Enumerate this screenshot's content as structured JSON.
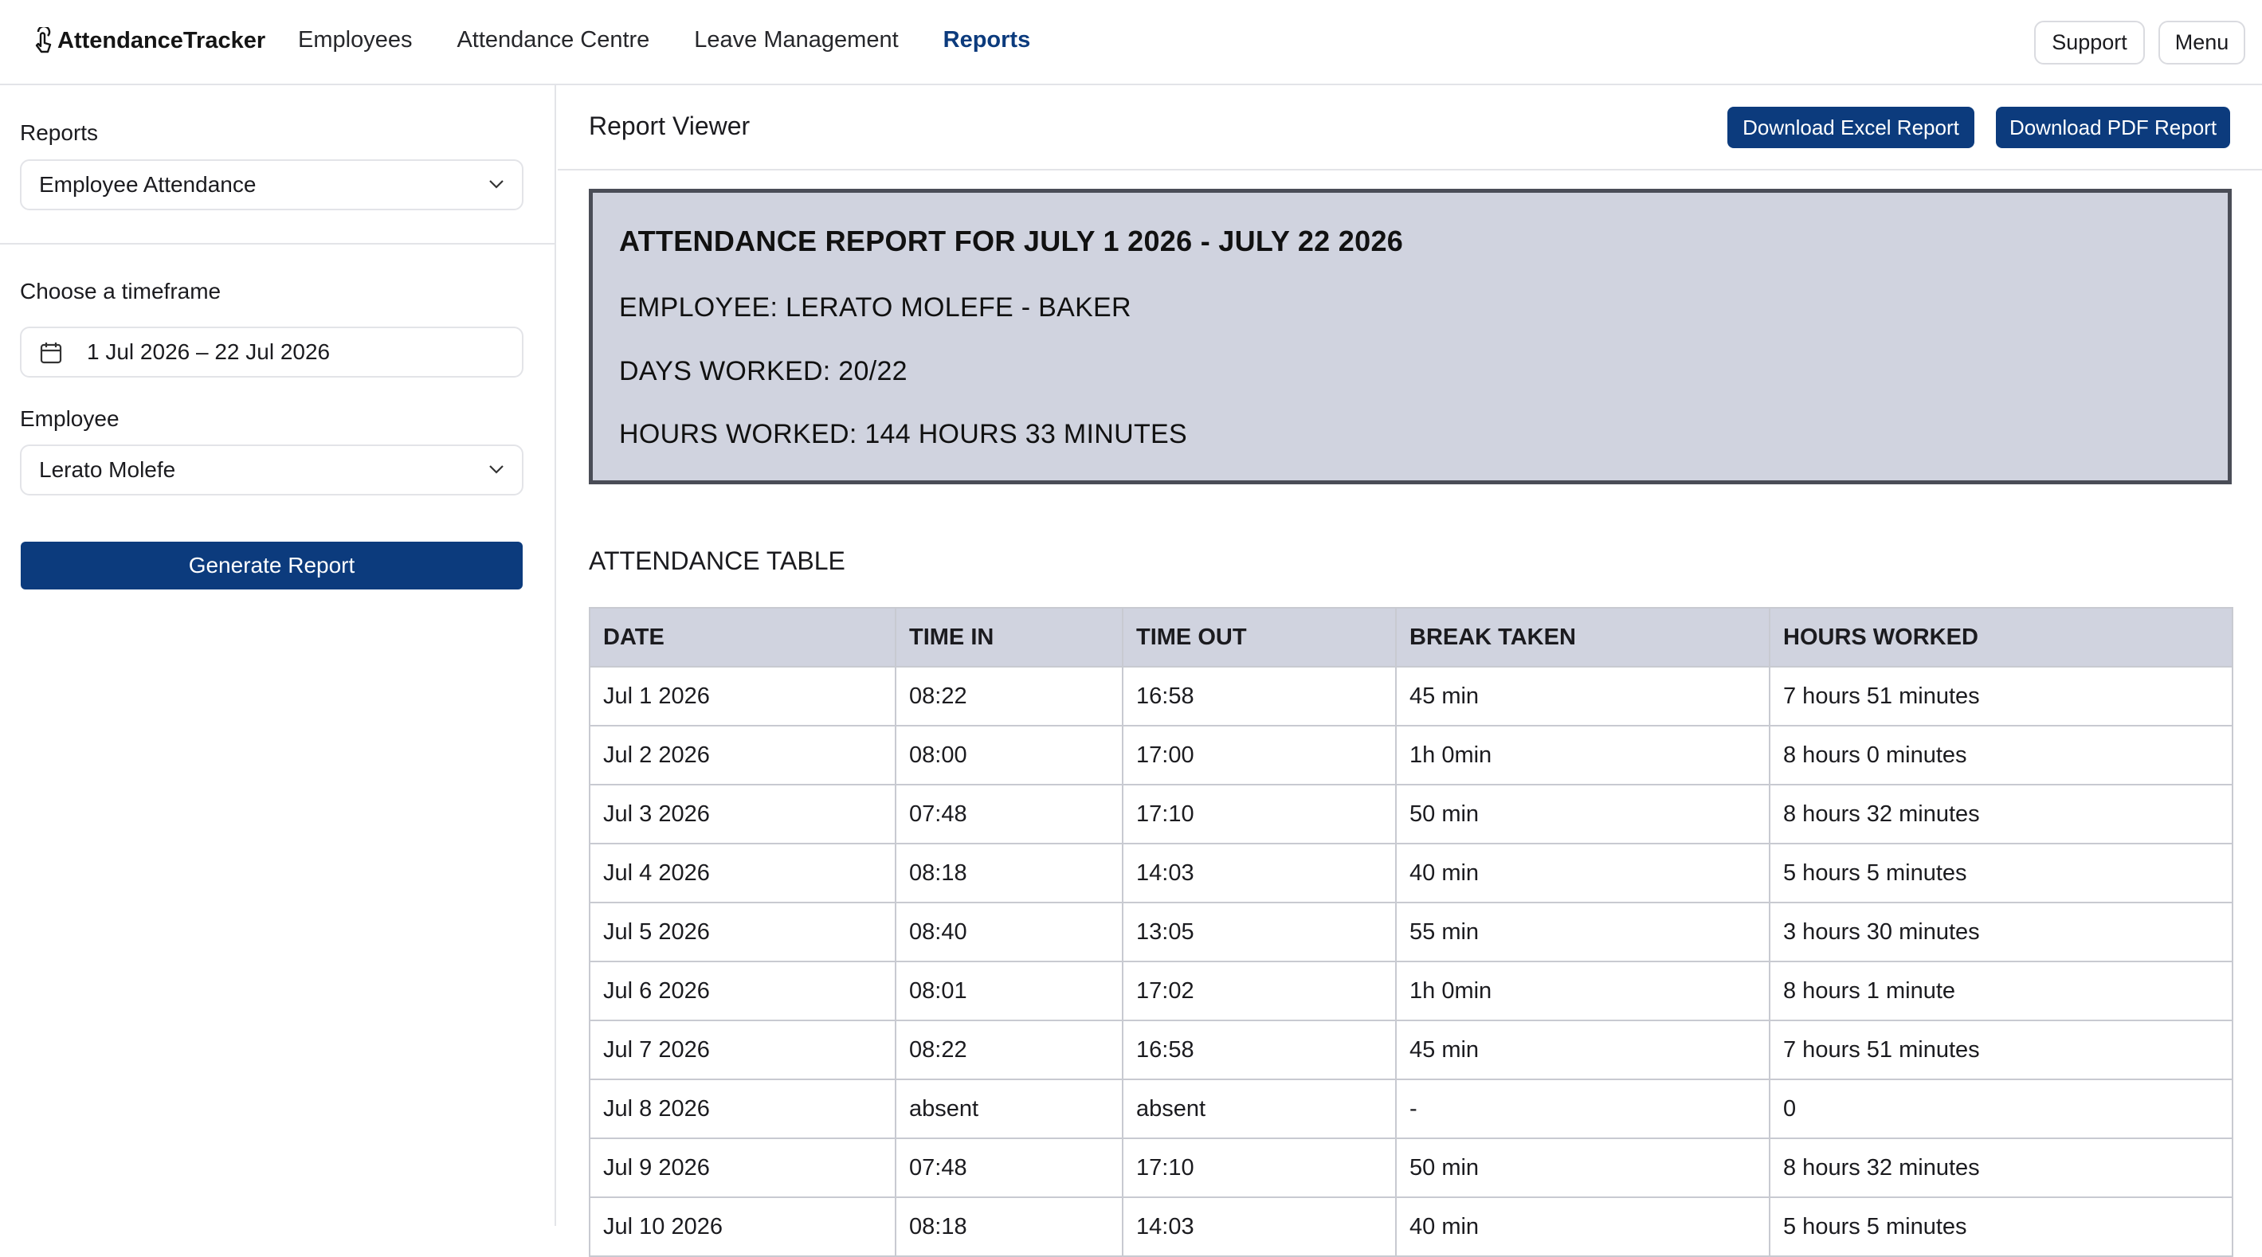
{
  "app": {
    "brand": "AttendanceTracker",
    "nav": [
      "Employees",
      "Attendance Centre",
      "Leave Management",
      "Reports"
    ],
    "active_nav": "Reports",
    "support_label": "Support",
    "menu_label": "Menu"
  },
  "sidebar": {
    "reports_label": "Reports",
    "reports_value": "Employee Attendance",
    "timeframe_label": "Choose a timeframe",
    "timeframe_value": "1 Jul 2026 – 22 Jul 2026",
    "employee_label": "Employee",
    "employee_value": "Lerato Molefe",
    "generate_label": "Generate Report"
  },
  "viewer": {
    "title": "Report Viewer",
    "excel_label": "Download Excel Report",
    "pdf_label": "Download PDF Report"
  },
  "summary": {
    "title": "ATTENDANCE REPORT FOR JULY 1 2026 - JULY 22 2026",
    "employee": "EMPLOYEE: LERATO MOLEFE - BAKER",
    "days": "DAYS WORKED: 20/22",
    "hours": "HOURS WORKED: 144 HOURS 33 MINUTES"
  },
  "table": {
    "heading": "ATTENDANCE TABLE",
    "columns": [
      "DATE",
      "TIME IN",
      "TIME OUT",
      "BREAK TAKEN",
      "HOURS WORKED"
    ],
    "rows": [
      [
        "Jul 1 2026",
        "08:22",
        "16:58",
        "45 min",
        "7 hours 51 minutes"
      ],
      [
        "Jul 2 2026",
        "08:00",
        "17:00",
        "1h 0min",
        "8 hours 0 minutes"
      ],
      [
        "Jul 3 2026",
        "07:48",
        "17:10",
        "50 min",
        "8 hours 32 minutes"
      ],
      [
        "Jul 4 2026",
        "08:18",
        "14:03",
        "40 min",
        "5 hours 5 minutes"
      ],
      [
        "Jul 5 2026",
        "08:40",
        "13:05",
        "55 min",
        "3 hours 30 minutes"
      ],
      [
        "Jul 6 2026",
        "08:01",
        "17:02",
        "1h 0min",
        "8 hours 1 minute"
      ],
      [
        "Jul 7 2026",
        "08:22",
        "16:58",
        "45 min",
        "7 hours 51 minutes"
      ],
      [
        "Jul 8 2026",
        "absent",
        "absent",
        "-",
        "0"
      ],
      [
        "Jul 9 2026",
        "07:48",
        "17:10",
        "50 min",
        "8 hours 32 minutes"
      ],
      [
        "Jul 10 2026",
        "08:18",
        "14:03",
        "40 min",
        "5 hours 5 minutes"
      ]
    ]
  },
  "colors": {
    "primary": "#0c3b7d",
    "summary_bg": "#d0d3df",
    "summary_border": "#4a4d57"
  },
  "icons": {
    "brand": "touch-pointer-icon",
    "calendar": "calendar-icon",
    "chevron": "chevron-down-icon"
  }
}
